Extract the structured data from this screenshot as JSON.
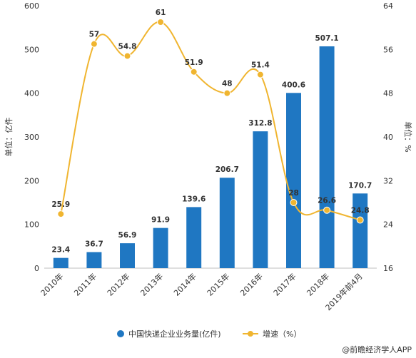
{
  "chart_data": {
    "type": "bar",
    "categories": [
      "2010年",
      "2011年",
      "2012年",
      "2013年",
      "2014年",
      "2015年",
      "2016年",
      "2017年",
      "2018年",
      "2019年前4月"
    ],
    "series": [
      {
        "name": "中国快递企业业务量(亿件)",
        "type": "bar",
        "axis": "left",
        "values": [
          23.4,
          36.7,
          56.9,
          91.9,
          139.6,
          206.7,
          312.8,
          400.6,
          507.1,
          170.7
        ],
        "labels": [
          "23.4",
          "36.7",
          "56.9",
          "91.9",
          "139.6",
          "206.7",
          "312.8",
          "400.6",
          "507.1",
          "170.7"
        ]
      },
      {
        "name": "增速（%）",
        "type": "line",
        "axis": "right",
        "values": [
          25.9,
          57,
          54.8,
          61,
          51.9,
          48,
          51.4,
          28,
          26.6,
          24.8
        ],
        "labels": [
          "25.9",
          "57",
          "54.8",
          "61",
          "51.9",
          "48",
          "51.4",
          "28",
          "26.6",
          "24.8"
        ]
      }
    ],
    "ylabel": "单位：亿件",
    "y2label": "单位：%",
    "ylim": [
      0,
      600
    ],
    "y2lim": [
      16,
      64
    ],
    "yticks": [
      "0",
      "100",
      "200",
      "300",
      "400",
      "500",
      "600"
    ],
    "y2ticks": [
      "16",
      "24",
      "32",
      "40",
      "48",
      "56",
      "64"
    ],
    "grid": false,
    "legend_position": "bottom",
    "colors": {
      "bar": "#1f77c2",
      "line": "#f0b530"
    }
  },
  "legend": {
    "bar_label": "中国快递企业业务量(亿件)",
    "line_label": "增速（%）"
  },
  "source": {
    "text": "@前瞻经济学人APP"
  }
}
